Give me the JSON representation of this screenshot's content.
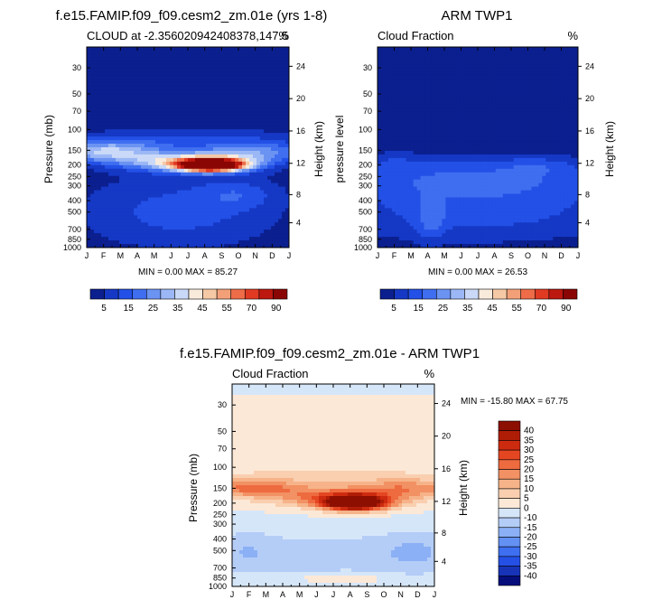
{
  "colors": {
    "seq_scale": [
      "#0b1f8f",
      "#1538c5",
      "#2350e6",
      "#3f6ef0",
      "#6b93f2",
      "#9bb7f5",
      "#cad9f7",
      "#f9ebdc",
      "#f6c9a6",
      "#f3a079",
      "#ee6c48",
      "#e03a23",
      "#bd1810",
      "#8a0604"
    ],
    "diff_scale": [
      "#050e7a",
      "#1734b8",
      "#2550e5",
      "#3e6ff0",
      "#6390f3",
      "#8cb0f5",
      "#b4cdf7",
      "#d6e6f9",
      "#fce8d6",
      "#f9cfb0",
      "#f6b389",
      "#f29163",
      "#ee6a3f",
      "#e44622",
      "#cd2b10",
      "#b01d07",
      "#8c0f02"
    ]
  },
  "charts": [
    {
      "id": "model",
      "figure_title": "f.e15.FAMIP.f09_f09.cesm2_zm.01e (yrs 1-8)",
      "left_subtitle": "CLOUD at -2.356020942408378,147.5",
      "right_subtitle": "%",
      "ylabel_left": "Pressure (mb)",
      "ylabel_right": "Height (km)",
      "stats": "MIN =   0.00 MAX =  85.27",
      "colorbar_labels": [
        "5",
        "15",
        "25",
        "35",
        "45",
        "55",
        "70",
        "90"
      ]
    },
    {
      "id": "obs",
      "figure_title": "ARM TWP1",
      "left_subtitle": "Cloud Fraction",
      "right_subtitle": "%",
      "ylabel_left": "pressure level",
      "ylabel_right": "Height (km)",
      "stats": "MIN =   0.00 MAX =  26.53",
      "colorbar_labels": [
        "5",
        "15",
        "25",
        "35",
        "45",
        "55",
        "70",
        "90"
      ]
    },
    {
      "id": "diff",
      "figure_title": "f.e15.FAMIP.f09_f09.cesm2_zm.01e - ARM TWP1",
      "left_subtitle": "Cloud Fraction",
      "right_subtitle": "%",
      "ylabel_left": "Pressure (mb)",
      "ylabel_right": "Height (km)",
      "stats": "MIN = -15.80 MAX =  67.75",
      "colorbar_labels": [
        "40",
        "35",
        "30",
        "25",
        "20",
        "15",
        "10",
        "5",
        "0",
        "-10",
        "-15",
        "-20",
        "-25",
        "-30",
        "-35",
        "-40"
      ]
    }
  ],
  "chart_data": [
    {
      "type": "heatmap",
      "panel": "model",
      "title": "CLOUD at -2.356020942408378,147.5",
      "xlabel": "",
      "ylabel": "Pressure (mb)",
      "y2label": "Height (km)",
      "x_ticks": [
        "J",
        "F",
        "M",
        "A",
        "M",
        "J",
        "J",
        "A",
        "S",
        "O",
        "N",
        "D",
        "J"
      ],
      "x_range": [
        0,
        12
      ],
      "y_ticks": [
        30,
        50,
        70,
        100,
        150,
        200,
        250,
        300,
        400,
        500,
        700,
        850,
        1000
      ],
      "y_range": [
        1000,
        20
      ],
      "y2_ticks": [
        24,
        20,
        16,
        12,
        8,
        4
      ],
      "levels": [
        0,
        5,
        10,
        15,
        20,
        25,
        30,
        35,
        40,
        45,
        50,
        55,
        60,
        70,
        80,
        90
      ],
      "min": 0.0,
      "max": 85.27,
      "features": [
        {
          "month": 7.4,
          "pressure": 200,
          "value": 85,
          "sx": 1.25,
          "sy": 0.08
        },
        {
          "month": 6.5,
          "pressure": 190,
          "value": 38,
          "sx": 2.7,
          "sy": 0.13
        },
        {
          "month": 1.2,
          "pressure": 155,
          "value": 28,
          "sx": 2.3,
          "sy": 0.15
        },
        {
          "month": 10.0,
          "pressure": 155,
          "value": 18,
          "sx": 2.3,
          "sy": 0.13
        },
        {
          "month": 6.3,
          "pressure": 120,
          "value": 10,
          "sx": 5.5,
          "sy": 0.16
        },
        {
          "month": 5.5,
          "pressure": 500,
          "value": 12,
          "sx": 4.5,
          "sy": 0.55
        },
        {
          "month": 9.0,
          "pressure": 350,
          "value": 8,
          "sx": 1.6,
          "sy": 0.2
        }
      ]
    },
    {
      "type": "heatmap",
      "panel": "obs",
      "title": "Cloud Fraction",
      "xlabel": "",
      "ylabel": "pressure level",
      "y2label": "Height (km)",
      "x_ticks": [
        "J",
        "F",
        "M",
        "A",
        "M",
        "J",
        "J",
        "A",
        "S",
        "O",
        "N",
        "D",
        "J"
      ],
      "x_range": [
        0,
        12
      ],
      "y_ticks": [
        30,
        50,
        70,
        100,
        150,
        200,
        250,
        300,
        400,
        500,
        700,
        850,
        1000
      ],
      "y_range": [
        1000,
        20
      ],
      "y2_ticks": [
        24,
        20,
        16,
        12,
        8,
        4
      ],
      "levels": [
        0,
        5,
        10,
        15,
        20,
        25,
        30,
        35,
        40,
        45,
        50,
        55,
        60,
        70,
        80,
        90
      ],
      "min": 0.0,
      "max": 26.53,
      "features": [
        {
          "month": 6.0,
          "pressure": 250,
          "value": 13,
          "sx": 7.0,
          "sy": 0.3
        },
        {
          "month": 6.0,
          "pressure": 500,
          "value": 12,
          "sx": 7.0,
          "sy": 0.45
        },
        {
          "month": 3.2,
          "pressure": 600,
          "value": 8,
          "sx": 0.6,
          "sy": 0.3
        },
        {
          "month": 9.5,
          "pressure": 200,
          "value": 5,
          "sx": 1.4,
          "sy": 0.12
        },
        {
          "month": 1.0,
          "pressure": 180,
          "value": 4,
          "sx": 1.2,
          "sy": 0.12
        }
      ]
    },
    {
      "type": "heatmap",
      "panel": "diff",
      "title": "Cloud Fraction",
      "xlabel": "",
      "ylabel": "Pressure (mb)",
      "y2label": "Height (km)",
      "x_ticks": [
        "J",
        "F",
        "M",
        "A",
        "M",
        "J",
        "J",
        "A",
        "S",
        "O",
        "N",
        "D",
        "J"
      ],
      "x_range": [
        0,
        12
      ],
      "y_ticks": [
        30,
        50,
        70,
        100,
        150,
        200,
        250,
        300,
        400,
        500,
        700,
        850,
        1000
      ],
      "y_range": [
        1000,
        20
      ],
      "y2_ticks": [
        24,
        20,
        16,
        12,
        8,
        4
      ],
      "levels": [
        -40,
        -35,
        -30,
        -25,
        -20,
        -15,
        -10,
        -5,
        0,
        5,
        10,
        15,
        20,
        25,
        30,
        35,
        40
      ],
      "min": -15.8,
      "max": 67.75,
      "features": [
        {
          "month": 7.3,
          "pressure": 200,
          "value": 55,
          "sx": 1.3,
          "sy": 0.1
        },
        {
          "month": 6.5,
          "pressure": 180,
          "value": 22,
          "sx": 2.8,
          "sy": 0.13
        },
        {
          "month": 1.2,
          "pressure": 150,
          "value": 20,
          "sx": 2.2,
          "sy": 0.12
        },
        {
          "month": 10.5,
          "pressure": 150,
          "value": 15,
          "sx": 2.4,
          "sy": 0.12
        },
        {
          "month": 6.0,
          "pressure": 120,
          "value": 6,
          "sx": 6.5,
          "sy": 0.18
        },
        {
          "month": 6.5,
          "pressure": 850,
          "value": 8,
          "sx": 1.8,
          "sy": 0.07
        },
        {
          "month": 6.0,
          "pressure": 550,
          "value": -8,
          "sx": 6.0,
          "sy": 0.35
        },
        {
          "month": 11.0,
          "pressure": 500,
          "value": -6,
          "sx": 1.4,
          "sy": 0.3
        },
        {
          "month": 0.8,
          "pressure": 500,
          "value": -5,
          "sx": 1.2,
          "sy": 0.3
        }
      ]
    }
  ]
}
